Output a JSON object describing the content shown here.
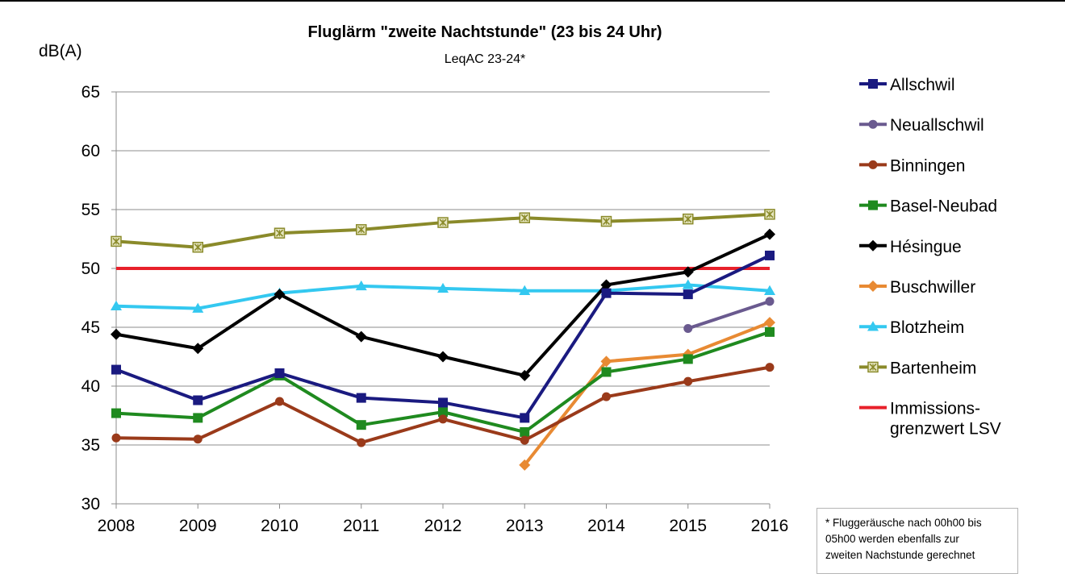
{
  "chart_data": {
    "type": "line",
    "title": "Fluglärm \"zweite Nachtstunde\" (23 bis 24 Uhr)",
    "subtitle": "LeqAC 23-24*",
    "ylabel": "dB(A)",
    "xlabel": "",
    "ylim": [
      30,
      65
    ],
    "yticks": [
      "30",
      "35",
      "40",
      "45",
      "50",
      "55",
      "60",
      "65"
    ],
    "categories": [
      "2008",
      "2009",
      "2010",
      "2011",
      "2012",
      "2013",
      "2014",
      "2015",
      "2016"
    ],
    "grid": "horizontal",
    "legend_position": "right",
    "series": [
      {
        "name": "Allschwil",
        "color": "#1a1a80",
        "marker": "square",
        "values": [
          41.4,
          38.8,
          41.1,
          39.0,
          38.6,
          37.3,
          47.9,
          47.8,
          51.1
        ]
      },
      {
        "name": "Neuallschwil",
        "color": "#6a5a8f",
        "marker": "circle",
        "values": [
          null,
          null,
          null,
          null,
          null,
          null,
          null,
          44.9,
          47.2
        ]
      },
      {
        "name": "Binningen",
        "color": "#9a3a1a",
        "marker": "circle",
        "values": [
          35.6,
          35.5,
          38.7,
          35.2,
          37.2,
          35.4,
          39.1,
          40.4,
          41.6
        ]
      },
      {
        "name": "Basel-Neubad",
        "color": "#1f8a1f",
        "marker": "square",
        "values": [
          37.7,
          37.3,
          40.9,
          36.7,
          37.8,
          36.1,
          41.2,
          42.3,
          44.6
        ]
      },
      {
        "name": "Hésingue",
        "color": "#000000",
        "marker": "diamond",
        "values": [
          44.4,
          43.2,
          47.8,
          44.2,
          42.5,
          40.9,
          48.6,
          49.7,
          52.9
        ]
      },
      {
        "name": "Buschwiller",
        "color": "#e88a33",
        "marker": "diamond",
        "values": [
          null,
          null,
          null,
          null,
          null,
          33.3,
          42.1,
          42.7,
          45.4
        ]
      },
      {
        "name": "Blotzheim",
        "color": "#33c8f0",
        "marker": "triangle",
        "values": [
          46.8,
          46.6,
          47.9,
          48.5,
          48.3,
          48.1,
          48.1,
          48.6,
          48.1
        ]
      },
      {
        "name": "Bartenheim",
        "color": "#8a8a2a",
        "marker": "star",
        "values": [
          52.3,
          51.8,
          53.0,
          53.3,
          53.9,
          54.3,
          54.0,
          54.2,
          54.6
        ]
      }
    ],
    "reference_line": {
      "name_lines": [
        "Immissions-",
        "grenzwert LSV"
      ],
      "value": 50,
      "color": "#e8202a"
    }
  },
  "footnote": {
    "lines": [
      "* Fluggeräusche nach 00h00 bis",
      "05h00 werden ebenfalls zur",
      "zweiten Nachstunde gerechnet"
    ]
  }
}
